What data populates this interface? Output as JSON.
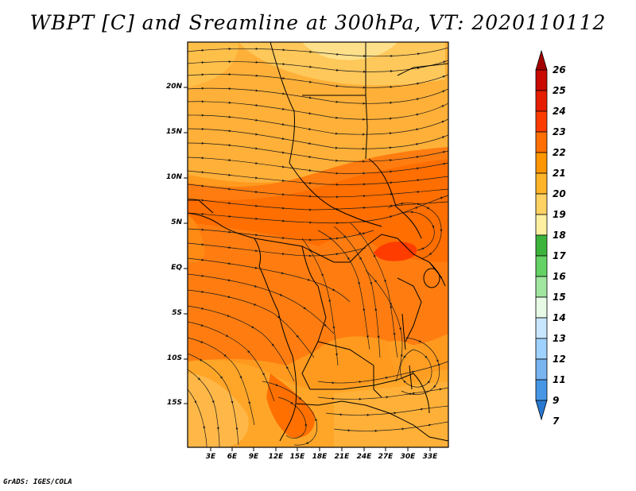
{
  "title": "WBPT [C] and Sreamline at 300hPa, VT: 2020110112",
  "credit": "GrADS: IGES/COLA",
  "map": {
    "lat_labels": [
      "20N",
      "15N",
      "10N",
      "5N",
      "EQ",
      "5S",
      "10S",
      "15S"
    ],
    "lon_labels": [
      "3E",
      "6E",
      "9E",
      "12E",
      "15E",
      "18E",
      "21E",
      "24E",
      "27E",
      "30E",
      "33E"
    ]
  },
  "colorbar": {
    "levels": [
      "26",
      "25",
      "24",
      "23",
      "22",
      "21",
      "20",
      "19",
      "18",
      "17",
      "16",
      "15",
      "14",
      "13",
      "12",
      "11",
      "9",
      "7"
    ],
    "colors": [
      "#a40000",
      "#c80a00",
      "#e61e00",
      "#ff3c00",
      "#ff6e00",
      "#ff9600",
      "#ffb428",
      "#ffd264",
      "#fff0a0",
      "#3cb43c",
      "#64d264",
      "#a0e6a0",
      "#e6fae6",
      "#c8e6ff",
      "#a0d2ff",
      "#78b4f0",
      "#4696e6",
      "#2878d2"
    ]
  },
  "colors": {
    "frame": "#000000",
    "arrow": "#000000"
  }
}
